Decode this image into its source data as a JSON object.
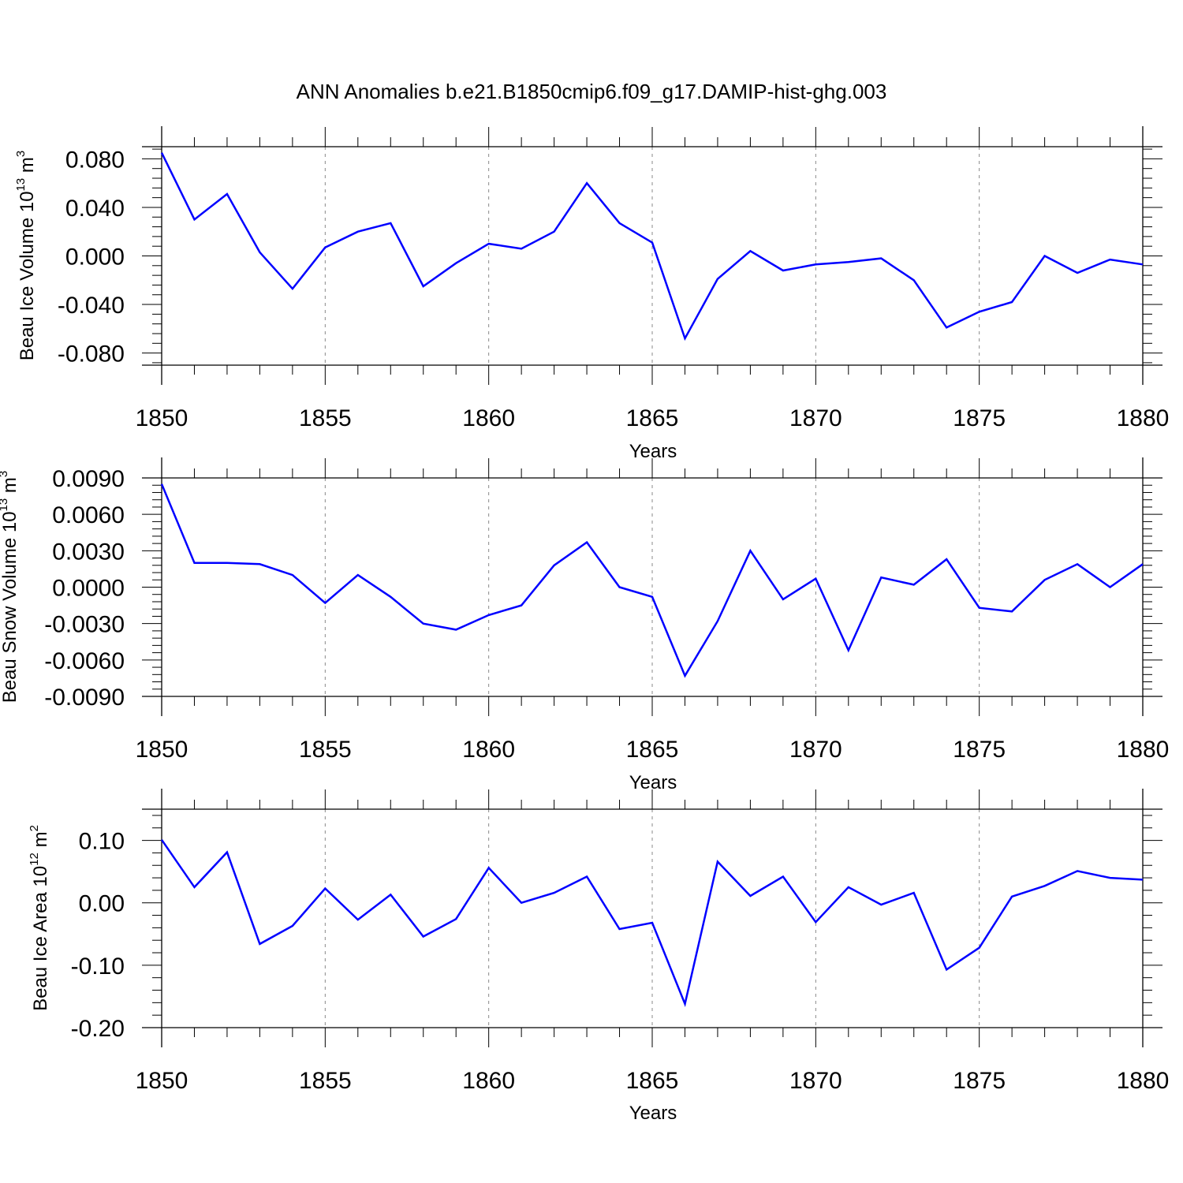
{
  "title": "ANN Anomalies b.e21.B1850cmip6.f09_g17.DAMIP-hist-ghg.003",
  "line_color": "#0000ff",
  "chart_data": [
    {
      "type": "line",
      "ylabel": {
        "main": "Beau Ice Volume 10",
        "exponent": "13",
        "unit": "m",
        "unit_exponent": "3"
      },
      "xlabel": "Years",
      "xlim": [
        1850,
        1880
      ],
      "ylim": [
        -0.09,
        0.09
      ],
      "yticks": [
        -0.08,
        -0.04,
        0.0,
        0.04,
        0.08
      ],
      "ytick_labels": [
        "-0.080",
        "-0.040",
        "0.000",
        "0.040",
        "0.080"
      ],
      "xticks": [
        1850,
        1855,
        1860,
        1865,
        1870,
        1875,
        1880
      ],
      "xtick_labels": [
        "1850",
        "1855",
        "1860",
        "1865",
        "1870",
        "1875",
        "1880"
      ],
      "series": [
        {
          "name": "Beau Ice Volume",
          "x": [
            1850,
            1851,
            1852,
            1853,
            1854,
            1855,
            1856,
            1857,
            1858,
            1859,
            1860,
            1861,
            1862,
            1863,
            1864,
            1865,
            1866,
            1867,
            1868,
            1869,
            1870,
            1871,
            1872,
            1873,
            1874,
            1875,
            1876,
            1877,
            1878,
            1879,
            1880
          ],
          "values": [
            0.085,
            0.03,
            0.051,
            0.003,
            -0.027,
            0.007,
            0.02,
            0.027,
            -0.025,
            -0.006,
            0.01,
            0.006,
            0.02,
            0.06,
            0.027,
            0.011,
            -0.068,
            -0.019,
            0.004,
            -0.012,
            -0.007,
            -0.005,
            -0.002,
            -0.02,
            -0.059,
            -0.046,
            -0.038,
            0.0,
            -0.014,
            -0.003,
            -0.007
          ]
        }
      ]
    },
    {
      "type": "line",
      "ylabel": {
        "main": "Beau Snow Volume 10",
        "exponent": "13",
        "unit": "m",
        "unit_exponent": "3"
      },
      "xlabel": "Years",
      "xlim": [
        1850,
        1880
      ],
      "ylim": [
        -0.009,
        0.009
      ],
      "yticks": [
        -0.009,
        -0.006,
        -0.003,
        0.0,
        0.003,
        0.006,
        0.009
      ],
      "ytick_labels": [
        "-0.0090",
        "-0.0060",
        "-0.0030",
        "0.0000",
        "0.0030",
        "0.0060",
        "0.0090"
      ],
      "xticks": [
        1850,
        1855,
        1860,
        1865,
        1870,
        1875,
        1880
      ],
      "xtick_labels": [
        "1850",
        "1855",
        "1860",
        "1865",
        "1870",
        "1875",
        "1880"
      ],
      "series": [
        {
          "name": "Beau Snow Volume",
          "x": [
            1850,
            1851,
            1852,
            1853,
            1854,
            1855,
            1856,
            1857,
            1858,
            1859,
            1860,
            1861,
            1862,
            1863,
            1864,
            1865,
            1866,
            1867,
            1868,
            1869,
            1870,
            1871,
            1872,
            1873,
            1874,
            1875,
            1876,
            1877,
            1878,
            1879,
            1880
          ],
          "values": [
            0.0085,
            0.002,
            0.002,
            0.0019,
            0.001,
            -0.0013,
            0.001,
            -0.0008,
            -0.003,
            -0.0035,
            -0.0023,
            -0.0015,
            0.0018,
            0.0037,
            0.0,
            -0.0008,
            -0.0073,
            -0.0028,
            0.003,
            -0.001,
            0.0007,
            -0.0052,
            0.0008,
            0.0002,
            0.0023,
            -0.0017,
            -0.002,
            0.0006,
            0.0019,
            0.0,
            0.0019
          ]
        }
      ]
    },
    {
      "type": "line",
      "ylabel": {
        "main": "Beau Ice Area 10",
        "exponent": "12",
        "unit": "m",
        "unit_exponent": "2"
      },
      "xlabel": "Years",
      "xlim": [
        1850,
        1880
      ],
      "ylim": [
        -0.2,
        0.15
      ],
      "yticks": [
        -0.2,
        -0.1,
        0.0,
        0.1
      ],
      "ytick_labels": [
        "-0.20",
        "-0.10",
        "0.00",
        "0.10"
      ],
      "xticks": [
        1850,
        1855,
        1860,
        1865,
        1870,
        1875,
        1880
      ],
      "xtick_labels": [
        "1850",
        "1855",
        "1860",
        "1865",
        "1870",
        "1875",
        "1880"
      ],
      "series": [
        {
          "name": "Beau Ice Area",
          "x": [
            1850,
            1851,
            1852,
            1853,
            1854,
            1855,
            1856,
            1857,
            1858,
            1859,
            1860,
            1861,
            1862,
            1863,
            1864,
            1865,
            1866,
            1867,
            1868,
            1869,
            1870,
            1871,
            1872,
            1873,
            1874,
            1875,
            1876,
            1877,
            1878,
            1879,
            1880
          ],
          "values": [
            0.101,
            0.025,
            0.081,
            -0.066,
            -0.037,
            0.023,
            -0.027,
            0.013,
            -0.054,
            -0.026,
            0.056,
            0.0,
            0.016,
            0.042,
            -0.042,
            -0.032,
            -0.162,
            0.066,
            0.011,
            0.042,
            -0.031,
            0.025,
            -0.003,
            0.016,
            -0.107,
            -0.072,
            0.01,
            0.027,
            0.051,
            0.04,
            0.037
          ]
        }
      ]
    }
  ]
}
